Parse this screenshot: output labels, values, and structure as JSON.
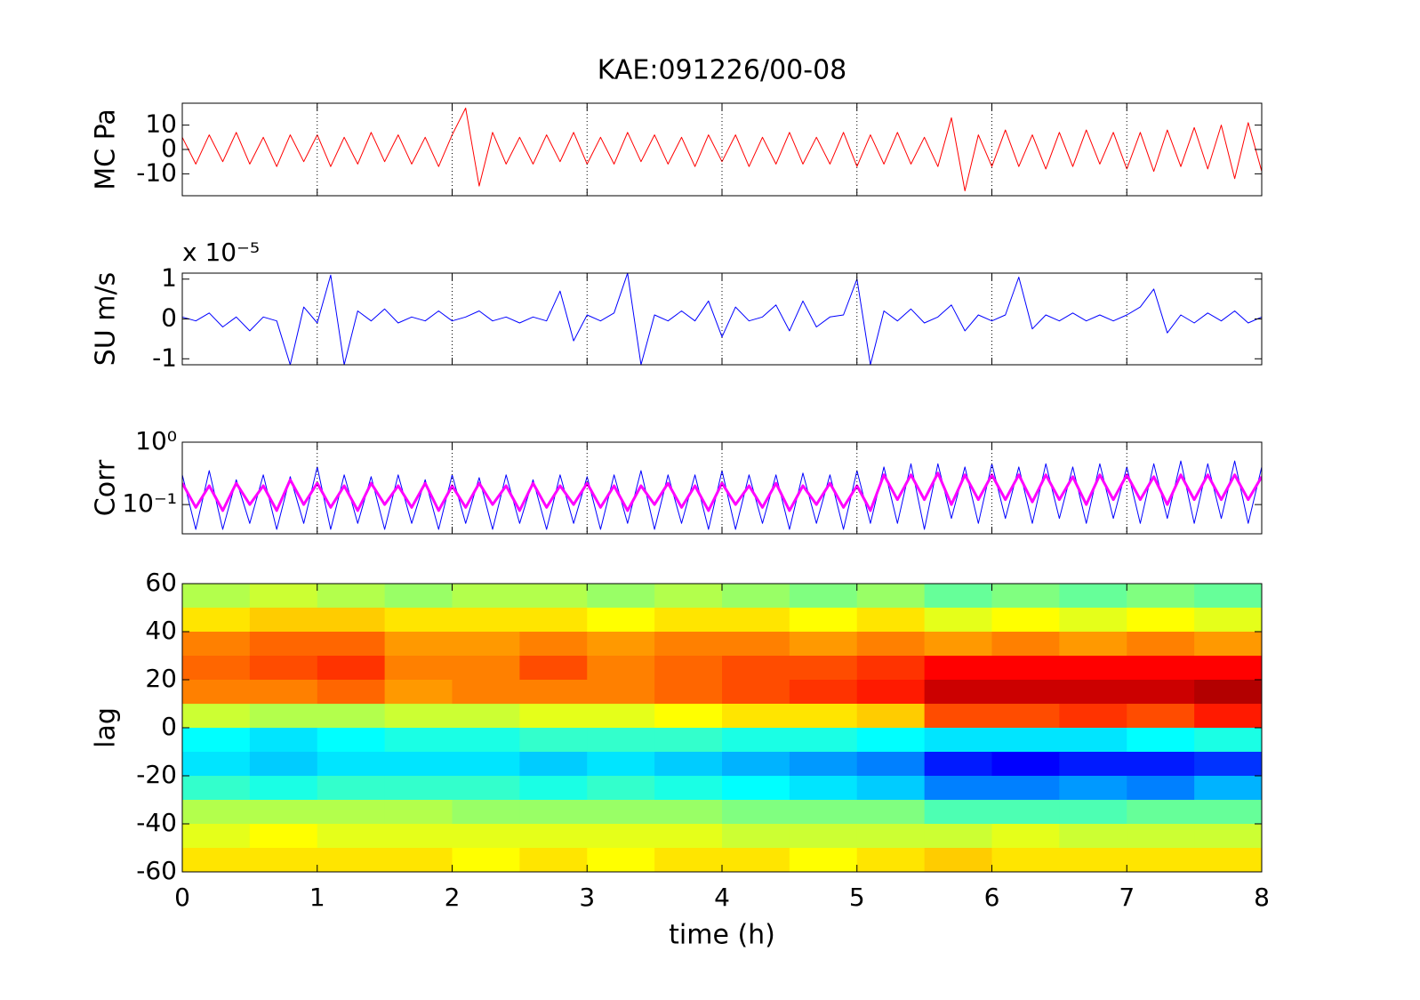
{
  "chart_data": [
    {
      "type": "line",
      "title": "KAE:091226/00-08",
      "ylabel": "MC Pa",
      "x": [
        0,
        0.1,
        0.2,
        0.3,
        0.4,
        0.5,
        0.6,
        0.7,
        0.8,
        0.9,
        1,
        1.1,
        1.2,
        1.3,
        1.4,
        1.5,
        1.6,
        1.7,
        1.8,
        1.9,
        2,
        2.1,
        2.2,
        2.3,
        2.4,
        2.5,
        2.6,
        2.7,
        2.8,
        2.9,
        3,
        3.1,
        3.2,
        3.3,
        3.4,
        3.5,
        3.6,
        3.7,
        3.8,
        3.9,
        4,
        4.1,
        4.2,
        4.3,
        4.4,
        4.5,
        4.6,
        4.7,
        4.8,
        4.9,
        5,
        5.1,
        5.2,
        5.3,
        5.4,
        5.5,
        5.6,
        5.7,
        5.8,
        5.9,
        6,
        6.1,
        6.2,
        6.3,
        6.4,
        6.5,
        6.6,
        6.7,
        6.8,
        6.9,
        7,
        7.1,
        7.2,
        7.3,
        7.4,
        7.5,
        7.6,
        7.7,
        7.8,
        7.9,
        8
      ],
      "series": [
        {
          "color": "#ff0000",
          "width": 1,
          "values": [
            5,
            -6,
            6,
            -5,
            7,
            -6,
            5,
            -7,
            6,
            -5,
            6,
            -7,
            5,
            -6,
            7,
            -5,
            6,
            -6,
            5,
            -7,
            6,
            17,
            -15,
            7,
            -6,
            5,
            -6,
            6,
            -5,
            7,
            -6,
            5,
            -6,
            7,
            -5,
            6,
            -6,
            5,
            -7,
            6,
            -5,
            6,
            -7,
            5,
            -6,
            7,
            -6,
            5,
            -6,
            7,
            -7,
            6,
            -6,
            7,
            -6,
            5,
            -7,
            13,
            -17,
            6,
            -7,
            8,
            -7,
            6,
            -8,
            7,
            -7,
            8,
            -6,
            7,
            -8,
            7,
            -9,
            8,
            -7,
            9,
            -8,
            10,
            -12,
            11,
            -9
          ]
        }
      ],
      "xlim": [
        0,
        8
      ],
      "xticks": [
        0,
        1,
        2,
        3,
        4,
        5,
        6,
        7,
        8
      ],
      "show_xtick_labels": false,
      "xgrid": true,
      "ylim": [
        -19,
        19
      ],
      "yticks": [
        -10,
        0,
        10
      ],
      "log_y": false
    },
    {
      "type": "line",
      "ylabel": "SU m/s",
      "y_exponent_label": "x 10⁻⁵",
      "x": [
        0,
        0.1,
        0.2,
        0.3,
        0.4,
        0.5,
        0.6,
        0.7,
        0.8,
        0.9,
        1,
        1.1,
        1.2,
        1.3,
        1.4,
        1.5,
        1.6,
        1.7,
        1.8,
        1.9,
        2,
        2.1,
        2.2,
        2.3,
        2.4,
        2.5,
        2.6,
        2.7,
        2.8,
        2.9,
        3,
        3.1,
        3.2,
        3.3,
        3.4,
        3.5,
        3.6,
        3.7,
        3.8,
        3.9,
        4,
        4.1,
        4.2,
        4.3,
        4.4,
        4.5,
        4.6,
        4.7,
        4.8,
        4.9,
        5,
        5.1,
        5.2,
        5.3,
        5.4,
        5.5,
        5.6,
        5.7,
        5.8,
        5.9,
        6,
        6.1,
        6.2,
        6.3,
        6.4,
        6.5,
        6.6,
        6.7,
        6.8,
        6.9,
        7,
        7.1,
        7.2,
        7.3,
        7.4,
        7.5,
        7.6,
        7.7,
        7.8,
        7.9,
        8
      ],
      "series": [
        {
          "color": "#0000ff",
          "width": 1,
          "values": [
            0.05,
            -0.05,
            0.15,
            -0.2,
            0.05,
            -0.3,
            0.05,
            -0.05,
            -1.15,
            0.3,
            -0.1,
            1.1,
            -1.15,
            0.2,
            -0.05,
            0.25,
            -0.1,
            0.05,
            -0.05,
            0.2,
            -0.05,
            0.05,
            0.2,
            -0.05,
            0.05,
            -0.1,
            0.05,
            -0.05,
            0.7,
            -0.55,
            0.1,
            -0.05,
            0.15,
            1.15,
            -1.15,
            0.1,
            -0.05,
            0.2,
            -0.05,
            0.45,
            -0.45,
            0.3,
            -0.05,
            0.05,
            0.35,
            -0.3,
            0.45,
            -0.2,
            0.05,
            0.1,
            1.0,
            -1.15,
            0.2,
            -0.05,
            0.25,
            -0.1,
            0.05,
            0.35,
            -0.3,
            0.1,
            -0.05,
            0.1,
            1.05,
            -0.25,
            0.1,
            -0.05,
            0.15,
            -0.05,
            0.1,
            -0.05,
            0.1,
            0.3,
            0.75,
            -0.35,
            0.1,
            -0.1,
            0.15,
            -0.05,
            0.2,
            -0.1,
            0.05
          ]
        }
      ],
      "xlim": [
        0,
        8
      ],
      "xticks": [
        0,
        1,
        2,
        3,
        4,
        5,
        6,
        7,
        8
      ],
      "show_xtick_labels": false,
      "xgrid": true,
      "ylim": [
        -1.15,
        1.15
      ],
      "yticks": [
        -1,
        0,
        1
      ],
      "log_y": false
    },
    {
      "type": "line",
      "ylabel": "Corr",
      "x": [
        0,
        0.1,
        0.2,
        0.3,
        0.4,
        0.5,
        0.6,
        0.7,
        0.8,
        0.9,
        1,
        1.1,
        1.2,
        1.3,
        1.4,
        1.5,
        1.6,
        1.7,
        1.8,
        1.9,
        2,
        2.1,
        2.2,
        2.3,
        2.4,
        2.5,
        2.6,
        2.7,
        2.8,
        2.9,
        3,
        3.1,
        3.2,
        3.3,
        3.4,
        3.5,
        3.6,
        3.7,
        3.8,
        3.9,
        4,
        4.1,
        4.2,
        4.3,
        4.4,
        4.5,
        4.6,
        4.7,
        4.8,
        4.9,
        5,
        5.1,
        5.2,
        5.3,
        5.4,
        5.5,
        5.6,
        5.7,
        5.8,
        5.9,
        6,
        6.1,
        6.2,
        6.3,
        6.4,
        6.5,
        6.6,
        6.7,
        6.8,
        6.9,
        7,
        7.1,
        7.2,
        7.3,
        7.4,
        7.5,
        7.6,
        7.7,
        7.8,
        7.9,
        8
      ],
      "series": [
        {
          "color": "#0000ff",
          "width": 1,
          "values": [
            0.3,
            0.04,
            0.35,
            0.04,
            0.25,
            0.05,
            0.3,
            0.04,
            0.28,
            0.05,
            0.4,
            0.04,
            0.3,
            0.05,
            0.28,
            0.04,
            0.3,
            0.05,
            0.25,
            0.04,
            0.3,
            0.05,
            0.27,
            0.04,
            0.3,
            0.05,
            0.25,
            0.04,
            0.3,
            0.05,
            0.28,
            0.04,
            0.3,
            0.05,
            0.35,
            0.04,
            0.3,
            0.05,
            0.3,
            0.04,
            0.35,
            0.04,
            0.3,
            0.05,
            0.3,
            0.04,
            0.32,
            0.05,
            0.3,
            0.04,
            0.35,
            0.05,
            0.4,
            0.05,
            0.45,
            0.04,
            0.45,
            0.06,
            0.4,
            0.05,
            0.45,
            0.06,
            0.4,
            0.05,
            0.45,
            0.06,
            0.4,
            0.05,
            0.45,
            0.06,
            0.4,
            0.05,
            0.45,
            0.06,
            0.5,
            0.05,
            0.45,
            0.06,
            0.5,
            0.05,
            0.4
          ]
        },
        {
          "color": "#ff00ff",
          "width": 3,
          "values": [
            0.22,
            0.09,
            0.2,
            0.08,
            0.22,
            0.1,
            0.2,
            0.08,
            0.25,
            0.1,
            0.22,
            0.09,
            0.2,
            0.08,
            0.22,
            0.1,
            0.2,
            0.09,
            0.22,
            0.08,
            0.2,
            0.09,
            0.22,
            0.1,
            0.2,
            0.08,
            0.22,
            0.09,
            0.2,
            0.1,
            0.22,
            0.09,
            0.2,
            0.08,
            0.2,
            0.1,
            0.22,
            0.09,
            0.2,
            0.08,
            0.22,
            0.1,
            0.2,
            0.09,
            0.22,
            0.08,
            0.2,
            0.1,
            0.22,
            0.09,
            0.2,
            0.08,
            0.3,
            0.12,
            0.3,
            0.12,
            0.32,
            0.1,
            0.3,
            0.12,
            0.3,
            0.12,
            0.3,
            0.11,
            0.3,
            0.12,
            0.28,
            0.1,
            0.3,
            0.12,
            0.3,
            0.12,
            0.28,
            0.1,
            0.3,
            0.12,
            0.3,
            0.12,
            0.3,
            0.12,
            0.28
          ]
        }
      ],
      "xlim": [
        0,
        8
      ],
      "xticks": [
        0,
        1,
        2,
        3,
        4,
        5,
        6,
        7,
        8
      ],
      "show_xtick_labels": false,
      "xgrid": true,
      "ylim": [
        0.034,
        1
      ],
      "yticks": [
        {
          "value": 0.1,
          "label": "10⁻¹"
        },
        {
          "value": 1,
          "label": "10⁰"
        }
      ],
      "log_y": true
    },
    {
      "type": "heatmap",
      "ylabel": "lag",
      "xlabel": "time (h)",
      "colormap": "jet",
      "clim": [
        -1,
        1
      ],
      "x_edges": [
        0,
        0.5,
        1,
        1.5,
        2,
        2.5,
        3,
        3.5,
        4,
        4.5,
        5,
        5.5,
        6,
        6.5,
        7,
        7.5,
        8
      ],
      "y_edges": [
        60,
        50,
        40,
        30,
        20,
        10,
        0,
        -10,
        -20,
        -30,
        -40,
        -50,
        -60
      ],
      "z": [
        [
          0.1,
          0.15,
          0.1,
          0.05,
          0.1,
          0.1,
          0.05,
          0.1,
          0.05,
          0.0,
          0.05,
          -0.05,
          0.0,
          -0.05,
          0.0,
          -0.05
        ],
        [
          0.3,
          0.35,
          0.35,
          0.3,
          0.3,
          0.3,
          0.25,
          0.3,
          0.3,
          0.25,
          0.3,
          0.2,
          0.25,
          0.2,
          0.25,
          0.2
        ],
        [
          0.5,
          0.55,
          0.55,
          0.45,
          0.45,
          0.5,
          0.45,
          0.5,
          0.5,
          0.45,
          0.5,
          0.45,
          0.5,
          0.45,
          0.5,
          0.45
        ],
        [
          0.55,
          0.6,
          0.65,
          0.5,
          0.5,
          0.6,
          0.5,
          0.55,
          0.6,
          0.6,
          0.65,
          0.75,
          0.75,
          0.75,
          0.75,
          0.75
        ],
        [
          0.5,
          0.5,
          0.55,
          0.45,
          0.5,
          0.5,
          0.5,
          0.55,
          0.6,
          0.65,
          0.7,
          0.85,
          0.85,
          0.85,
          0.85,
          0.9
        ],
        [
          0.15,
          0.1,
          0.1,
          0.15,
          0.15,
          0.2,
          0.2,
          0.25,
          0.3,
          0.3,
          0.35,
          0.6,
          0.6,
          0.65,
          0.6,
          0.7
        ],
        [
          -0.25,
          -0.3,
          -0.25,
          -0.2,
          -0.2,
          -0.15,
          -0.15,
          -0.15,
          -0.2,
          -0.2,
          -0.25,
          -0.3,
          -0.3,
          -0.3,
          -0.25,
          -0.2
        ],
        [
          -0.3,
          -0.35,
          -0.3,
          -0.3,
          -0.3,
          -0.35,
          -0.3,
          -0.35,
          -0.4,
          -0.45,
          -0.5,
          -0.7,
          -0.75,
          -0.7,
          -0.7,
          -0.65
        ],
        [
          -0.15,
          -0.2,
          -0.15,
          -0.15,
          -0.15,
          -0.2,
          -0.15,
          -0.2,
          -0.25,
          -0.3,
          -0.35,
          -0.5,
          -0.5,
          -0.45,
          -0.5,
          -0.4
        ],
        [
          0.1,
          0.1,
          0.1,
          0.1,
          0.05,
          0.05,
          0.05,
          0.05,
          0.0,
          0.0,
          0.0,
          -0.1,
          -0.1,
          -0.1,
          -0.05,
          -0.05
        ],
        [
          0.2,
          0.25,
          0.2,
          0.2,
          0.2,
          0.2,
          0.2,
          0.2,
          0.15,
          0.15,
          0.15,
          0.15,
          0.2,
          0.15,
          0.15,
          0.15
        ],
        [
          0.3,
          0.3,
          0.3,
          0.3,
          0.25,
          0.3,
          0.25,
          0.3,
          0.3,
          0.25,
          0.3,
          0.35,
          0.3,
          0.3,
          0.3,
          0.3
        ]
      ],
      "xlim": [
        0,
        8
      ],
      "xticks": [
        0,
        1,
        2,
        3,
        4,
        5,
        6,
        7,
        8
      ],
      "show_xtick_labels": true,
      "xgrid": false,
      "ylim": [
        -60,
        60
      ],
      "yticks": [
        -60,
        -40,
        -20,
        0,
        20,
        40,
        60
      ],
      "log_y": false
    }
  ]
}
